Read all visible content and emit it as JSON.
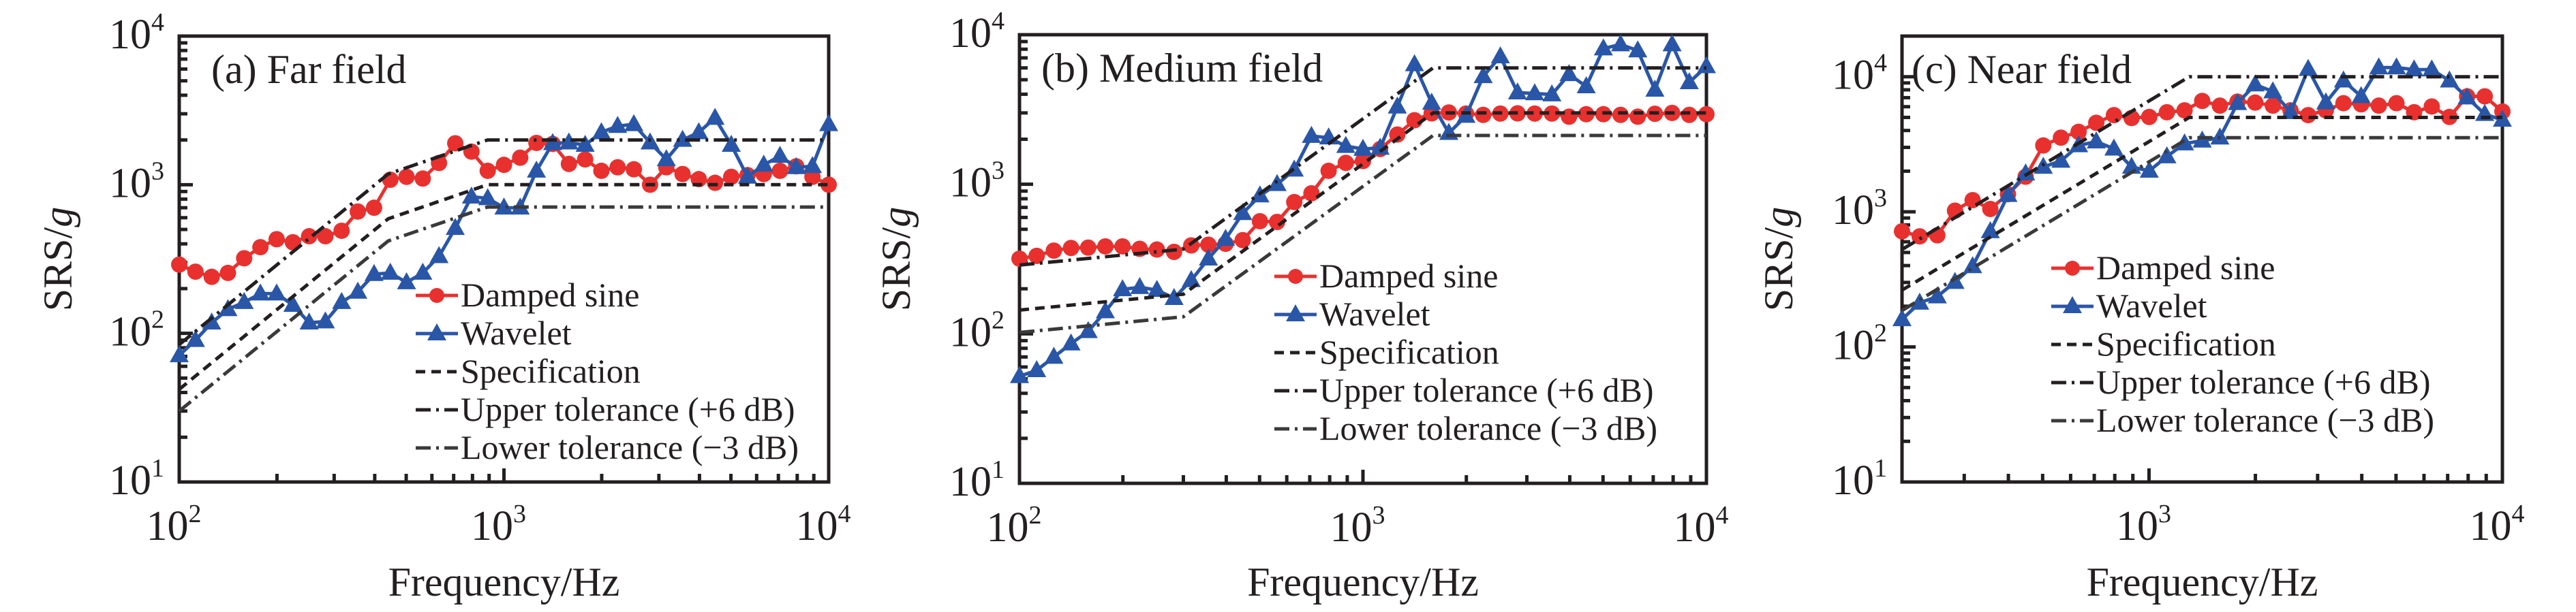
{
  "figure": {
    "colors": {
      "damped_sine": "#e8312f",
      "wavelet": "#2a56a8",
      "reference": "#231f20"
    },
    "legend_labels": [
      "Damped sine",
      "Wavelet",
      "Specification",
      "Upper tolerance (+6 dB)",
      "Lower tolerance (−3 dB)"
    ]
  },
  "chart_data": [
    {
      "type": "line",
      "title": "(a) Far field",
      "xlabel": "Frequency/Hz",
      "ylabel": "SRS/g",
      "xscale": "log",
      "yscale": "log",
      "xlim": [
        100,
        10000
      ],
      "ylim": [
        10,
        10000
      ],
      "xticks": [
        {
          "base": "10",
          "exp": "2",
          "value": 100
        },
        {
          "base": "10",
          "exp": "3",
          "value": 1000
        },
        {
          "base": "10",
          "exp": "4",
          "value": 10000
        }
      ],
      "yticks": [
        {
          "base": "10",
          "exp": "1",
          "value": 10
        },
        {
          "base": "10",
          "exp": "2",
          "value": 100
        },
        {
          "base": "10",
          "exp": "3",
          "value": 1000
        },
        {
          "base": "10",
          "exp": "4",
          "value": 10000
        }
      ],
      "legend_position": "lower-right",
      "series": [
        {
          "name": "Damped sine",
          "marker": "circle",
          "x_range": [
            100,
            10000
          ],
          "values": [
            290,
            260,
            240,
            255,
            320,
            380,
            430,
            410,
            450,
            450,
            490,
            660,
            700,
            1080,
            1130,
            1100,
            1400,
            1900,
            1670,
            1240,
            1360,
            1520,
            1910,
            1880,
            1380,
            1480,
            1240,
            1310,
            1270,
            1000,
            1310,
            1180,
            1090,
            1030,
            1130,
            1160,
            1180,
            1240,
            1330,
            1130,
            1000
          ]
        },
        {
          "name": "Wavelet",
          "marker": "triangle",
          "x_range": [
            100,
            10000
          ],
          "values": [
            71,
            90,
            118,
            145,
            162,
            185,
            185,
            155,
            118,
            120,
            162,
            190,
            250,
            255,
            220,
            255,
            330,
            510,
            830,
            810,
            700,
            700,
            1240,
            1900,
            1920,
            1850,
            2250,
            2480,
            2550,
            1920,
            1480,
            2000,
            2250,
            2810,
            1850,
            1130,
            1360,
            1560,
            1310,
            1330,
            2550
          ]
        },
        {
          "name": "Specification",
          "style": "dashed",
          "x": [
            100,
            440,
            890,
            10000
          ],
          "values": [
            42,
            590,
            1000,
            1000
          ]
        },
        {
          "name": "Upper tolerance (+6 dB)",
          "style": "dash-dot",
          "x": [
            100,
            440,
            890,
            10000
          ],
          "values": [
            84,
            1180,
            2000,
            2000
          ]
        },
        {
          "name": "Lower tolerance (−3 dB)",
          "style": "dash-dot",
          "x": [
            100,
            440,
            890,
            10000
          ],
          "values": [
            30,
            418,
            708,
            708
          ]
        }
      ]
    },
    {
      "type": "line",
      "title": "(b) Medium field",
      "xlabel": "Frequency/Hz",
      "ylabel": "SRS/g",
      "xscale": "log",
      "yscale": "log",
      "xlim": [
        100,
        10000
      ],
      "ylim": [
        10,
        10000
      ],
      "xticks": [
        {
          "base": "10",
          "exp": "2",
          "value": 100
        },
        {
          "base": "10",
          "exp": "3",
          "value": 1000
        },
        {
          "base": "10",
          "exp": "4",
          "value": 10000
        }
      ],
      "yticks": [
        {
          "base": "10",
          "exp": "1",
          "value": 10
        },
        {
          "base": "10",
          "exp": "2",
          "value": 100
        },
        {
          "base": "10",
          "exp": "3",
          "value": 1000
        },
        {
          "base": "10",
          "exp": "4",
          "value": 10000
        }
      ],
      "legend_position": "lower-right",
      "series": [
        {
          "name": "Damped sine",
          "marker": "circle",
          "x_range": [
            100,
            10000
          ],
          "values": [
            318,
            332,
            360,
            375,
            377,
            384,
            384,
            370,
            366,
            353,
            390,
            394,
            400,
            423,
            566,
            560,
            760,
            870,
            1230,
            1390,
            1430,
            1720,
            2150,
            2680,
            2980,
            3020,
            2970,
            2910,
            2970,
            2980,
            2970,
            2970,
            2830,
            2940,
            2940,
            2910,
            2830,
            2960,
            3000,
            2910,
            2940
          ]
        },
        {
          "name": "Wavelet",
          "marker": "triangle",
          "x_range": [
            100,
            10000
          ],
          "values": [
            52,
            57,
            70,
            86,
            104,
            141,
            198,
            205,
            196,
            173,
            228,
            318,
            430,
            640,
            840,
            1000,
            1250,
            2100,
            2050,
            1800,
            1720,
            1750,
            3300,
            6330,
            3500,
            2200,
            2860,
            5270,
            7150,
            4100,
            4050,
            3980,
            5440,
            4510,
            8080,
            8600,
            7840,
            4280,
            8600,
            4800,
            6140
          ]
        },
        {
          "name": "Specification",
          "style": "dashed",
          "x": [
            100,
            300,
            1600,
            10000
          ],
          "values": [
            144,
            184,
            3000,
            3000
          ]
        },
        {
          "name": "Upper tolerance (+6 dB)",
          "style": "dash-dot",
          "x": [
            100,
            300,
            1600,
            10000
          ],
          "values": [
            288,
            368,
            6000,
            6000
          ]
        },
        {
          "name": "Lower tolerance (−3 dB)",
          "style": "dash-dot",
          "x": [
            100,
            300,
            1600,
            10000
          ],
          "values": [
            102,
            130,
            2120,
            2120
          ]
        }
      ]
    },
    {
      "type": "line",
      "title": "(c) Near field",
      "xlabel": "Frequency/Hz",
      "ylabel": "SRS/g",
      "xscale": "log",
      "yscale": "log",
      "xlim": [
        200,
        10000
      ],
      "ylim": [
        10,
        20000
      ],
      "xticks": [
        {
          "base": "10",
          "exp": "3",
          "value": 1000
        },
        {
          "base": "10",
          "exp": "4",
          "value": 10000
        }
      ],
      "yticks": [
        {
          "base": "10",
          "exp": "1",
          "value": 10
        },
        {
          "base": "10",
          "exp": "2",
          "value": 100
        },
        {
          "base": "10",
          "exp": "3",
          "value": 1000
        },
        {
          "base": "10",
          "exp": "4",
          "value": 10000
        }
      ],
      "legend_position": "lower-right",
      "series": [
        {
          "name": "Damped sine",
          "marker": "circle",
          "x_range": [
            200,
            10000
          ],
          "values": [
            717,
            658,
            670,
            1020,
            1220,
            1050,
            1350,
            1820,
            3100,
            3540,
            3910,
            4560,
            5200,
            4950,
            5040,
            5460,
            5640,
            6620,
            6110,
            6540,
            6440,
            6110,
            5640,
            5200,
            5640,
            6370,
            6250,
            6110,
            6370,
            5460,
            6020,
            5040,
            7160,
            7160,
            5530
          ]
        },
        {
          "name": "Wavelet",
          "marker": "triangle",
          "x_range": [
            200,
            10000
          ],
          "values": [
            160,
            212,
            236,
            302,
            395,
            717,
            1330,
            1920,
            2150,
            2380,
            3100,
            3310,
            2930,
            2150,
            2010,
            2570,
            3200,
            3360,
            3540,
            6370,
            8750,
            7770,
            5460,
            11400,
            6440,
            9350,
            7160,
            11700,
            11700,
            11300,
            11300,
            9350,
            7010,
            5290,
            4790
          ]
        },
        {
          "name": "Specification",
          "style": "dashed",
          "x": [
            200,
            1300,
            10000
          ],
          "values": [
            263,
            5000,
            5000
          ]
        },
        {
          "name": "Upper tolerance (+6 dB)",
          "style": "dash-dot",
          "x": [
            200,
            1300,
            10000
          ],
          "values": [
            526,
            10000,
            10000
          ]
        },
        {
          "name": "Lower tolerance (−3 dB)",
          "style": "dash-dot",
          "x": [
            200,
            1300,
            10000
          ],
          "values": [
            186,
            3540,
            3540
          ]
        }
      ]
    }
  ]
}
